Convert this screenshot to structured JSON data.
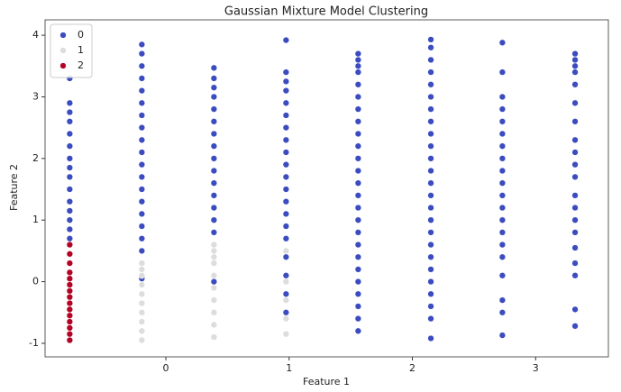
{
  "chart_data": {
    "type": "scatter",
    "title": "Gaussian Mixture Model Clustering",
    "x_label": "Feature 1",
    "y_label": "Feature 2",
    "xlim": [
      -0.98,
      3.59
    ],
    "ylim": [
      -1.22,
      4.25
    ],
    "xticks": [
      0,
      1,
      2,
      3
    ],
    "yticks": [
      -1,
      0,
      1,
      2,
      3,
      4
    ],
    "legend": "upper-left",
    "grid": false,
    "series": [
      {
        "name": "0",
        "color": "#3b4cc0",
        "x": [
          -0.78,
          -0.78,
          -0.78,
          -0.78,
          -0.78,
          -0.78,
          -0.78,
          -0.78,
          -0.78,
          -0.78,
          -0.78,
          -0.78,
          -0.78,
          -0.78,
          -0.78,
          -0.195,
          -0.195,
          -0.195,
          -0.195,
          -0.195,
          -0.195,
          -0.195,
          -0.195,
          -0.195,
          -0.195,
          -0.195,
          -0.195,
          -0.195,
          -0.195,
          -0.195,
          -0.195,
          -0.195,
          -0.195,
          -0.195,
          -0.195,
          0.39,
          0.39,
          0.39,
          0.39,
          0.39,
          0.39,
          0.39,
          0.39,
          0.39,
          0.39,
          0.39,
          0.39,
          0.39,
          0.39,
          0.39,
          0.39,
          0.39,
          0.39,
          0.39,
          0.39,
          0.975,
          0.975,
          0.975,
          0.975,
          0.975,
          0.975,
          0.975,
          0.975,
          0.975,
          0.975,
          0.975,
          0.975,
          0.975,
          0.975,
          0.975,
          0.975,
          0.975,
          0.975,
          0.975,
          0.975,
          1.56,
          1.56,
          1.56,
          1.56,
          1.56,
          1.56,
          1.56,
          1.56,
          1.56,
          1.56,
          1.56,
          1.56,
          1.56,
          1.56,
          1.56,
          1.56,
          1.56,
          1.56,
          1.56,
          1.56,
          1.56,
          1.56,
          1.56,
          1.56,
          1.56,
          2.15,
          2.15,
          2.15,
          2.15,
          2.15,
          2.15,
          2.15,
          2.15,
          2.15,
          2.15,
          2.15,
          2.15,
          2.15,
          2.15,
          2.15,
          2.15,
          2.15,
          2.15,
          2.15,
          2.15,
          2.15,
          2.15,
          2.15,
          2.15,
          2.15,
          2.73,
          2.73,
          2.73,
          2.73,
          2.73,
          2.73,
          2.73,
          2.73,
          2.73,
          2.73,
          2.73,
          2.73,
          2.73,
          2.73,
          2.73,
          2.73,
          2.73,
          2.73,
          2.73,
          2.73,
          3.32,
          3.32,
          3.32,
          3.32,
          3.32,
          3.32,
          3.32,
          3.32,
          3.32,
          3.32,
          3.32,
          3.32,
          3.32,
          3.32,
          3.32,
          3.32,
          3.32,
          3.32,
          3.32,
          3.32
        ],
        "values": [
          0.7,
          0.85,
          1.0,
          1.15,
          1.3,
          1.5,
          1.7,
          1.85,
          2.0,
          2.2,
          2.4,
          2.6,
          2.75,
          2.9,
          3.3,
          0.05,
          0.3,
          0.5,
          0.7,
          0.9,
          1.1,
          1.3,
          1.5,
          1.7,
          1.9,
          2.1,
          2.3,
          2.5,
          2.7,
          2.9,
          3.1,
          3.3,
          3.5,
          3.7,
          3.85,
          -0.9,
          -0.5,
          0.0,
          0.3,
          0.6,
          0.8,
          1.0,
          1.2,
          1.4,
          1.6,
          1.8,
          2.0,
          2.2,
          2.4,
          2.6,
          2.8,
          3.0,
          3.15,
          3.3,
          3.47,
          -0.5,
          -0.2,
          0.1,
          0.4,
          0.7,
          0.9,
          1.1,
          1.3,
          1.5,
          1.7,
          1.9,
          2.1,
          2.3,
          2.5,
          2.7,
          2.9,
          3.1,
          3.25,
          3.4,
          3.92,
          -0.8,
          -0.6,
          -0.4,
          -0.2,
          0.0,
          0.2,
          0.4,
          0.6,
          0.8,
          1.0,
          1.2,
          1.4,
          1.6,
          1.8,
          2.0,
          2.2,
          2.4,
          2.6,
          2.8,
          3.0,
          3.2,
          3.4,
          3.5,
          3.6,
          3.7,
          -0.92,
          -0.6,
          -0.4,
          -0.2,
          0.0,
          0.2,
          0.4,
          0.6,
          0.8,
          1.0,
          1.2,
          1.4,
          1.6,
          1.8,
          2.0,
          2.2,
          2.4,
          2.6,
          2.8,
          3.0,
          3.2,
          3.4,
          3.6,
          3.8,
          3.93,
          -0.87,
          -0.5,
          -0.3,
          0.1,
          0.4,
          0.6,
          0.8,
          1.0,
          1.2,
          1.4,
          1.6,
          1.8,
          2.0,
          2.2,
          2.4,
          2.6,
          2.8,
          3.0,
          3.4,
          3.88,
          -0.72,
          -0.45,
          0.1,
          0.3,
          0.55,
          0.8,
          1.0,
          1.2,
          1.4,
          1.7,
          1.9,
          2.1,
          2.3,
          2.6,
          2.9,
          3.2,
          3.4,
          3.5,
          3.6,
          3.7
        ]
      },
      {
        "name": "1",
        "color": "#dddddd",
        "x": [
          -0.195,
          -0.195,
          -0.195,
          -0.195,
          -0.195,
          -0.195,
          -0.195,
          -0.195,
          -0.195,
          -0.195,
          0.39,
          0.39,
          0.39,
          0.39,
          0.39,
          0.39,
          0.39,
          0.39,
          0.39,
          0.39,
          0.975,
          0.975,
          0.975,
          0.975,
          0.975
        ],
        "values": [
          -0.95,
          -0.8,
          -0.65,
          -0.5,
          -0.35,
          -0.2,
          -0.05,
          0.1,
          0.2,
          0.3,
          -0.9,
          -0.7,
          -0.5,
          -0.3,
          -0.1,
          0.1,
          0.3,
          0.4,
          0.5,
          0.6,
          -0.85,
          -0.6,
          -0.3,
          0.0,
          0.5
        ]
      },
      {
        "name": "2",
        "color": "#b40426",
        "x": [
          -0.78,
          -0.78,
          -0.78,
          -0.78,
          -0.78,
          -0.78,
          -0.78,
          -0.78,
          -0.78,
          -0.78,
          -0.78,
          -0.78,
          -0.78,
          -0.78,
          -0.78
        ],
        "values": [
          -0.95,
          -0.85,
          -0.75,
          -0.65,
          -0.55,
          -0.45,
          -0.35,
          -0.25,
          -0.15,
          -0.05,
          0.05,
          0.15,
          0.3,
          0.45,
          0.6
        ]
      }
    ]
  }
}
